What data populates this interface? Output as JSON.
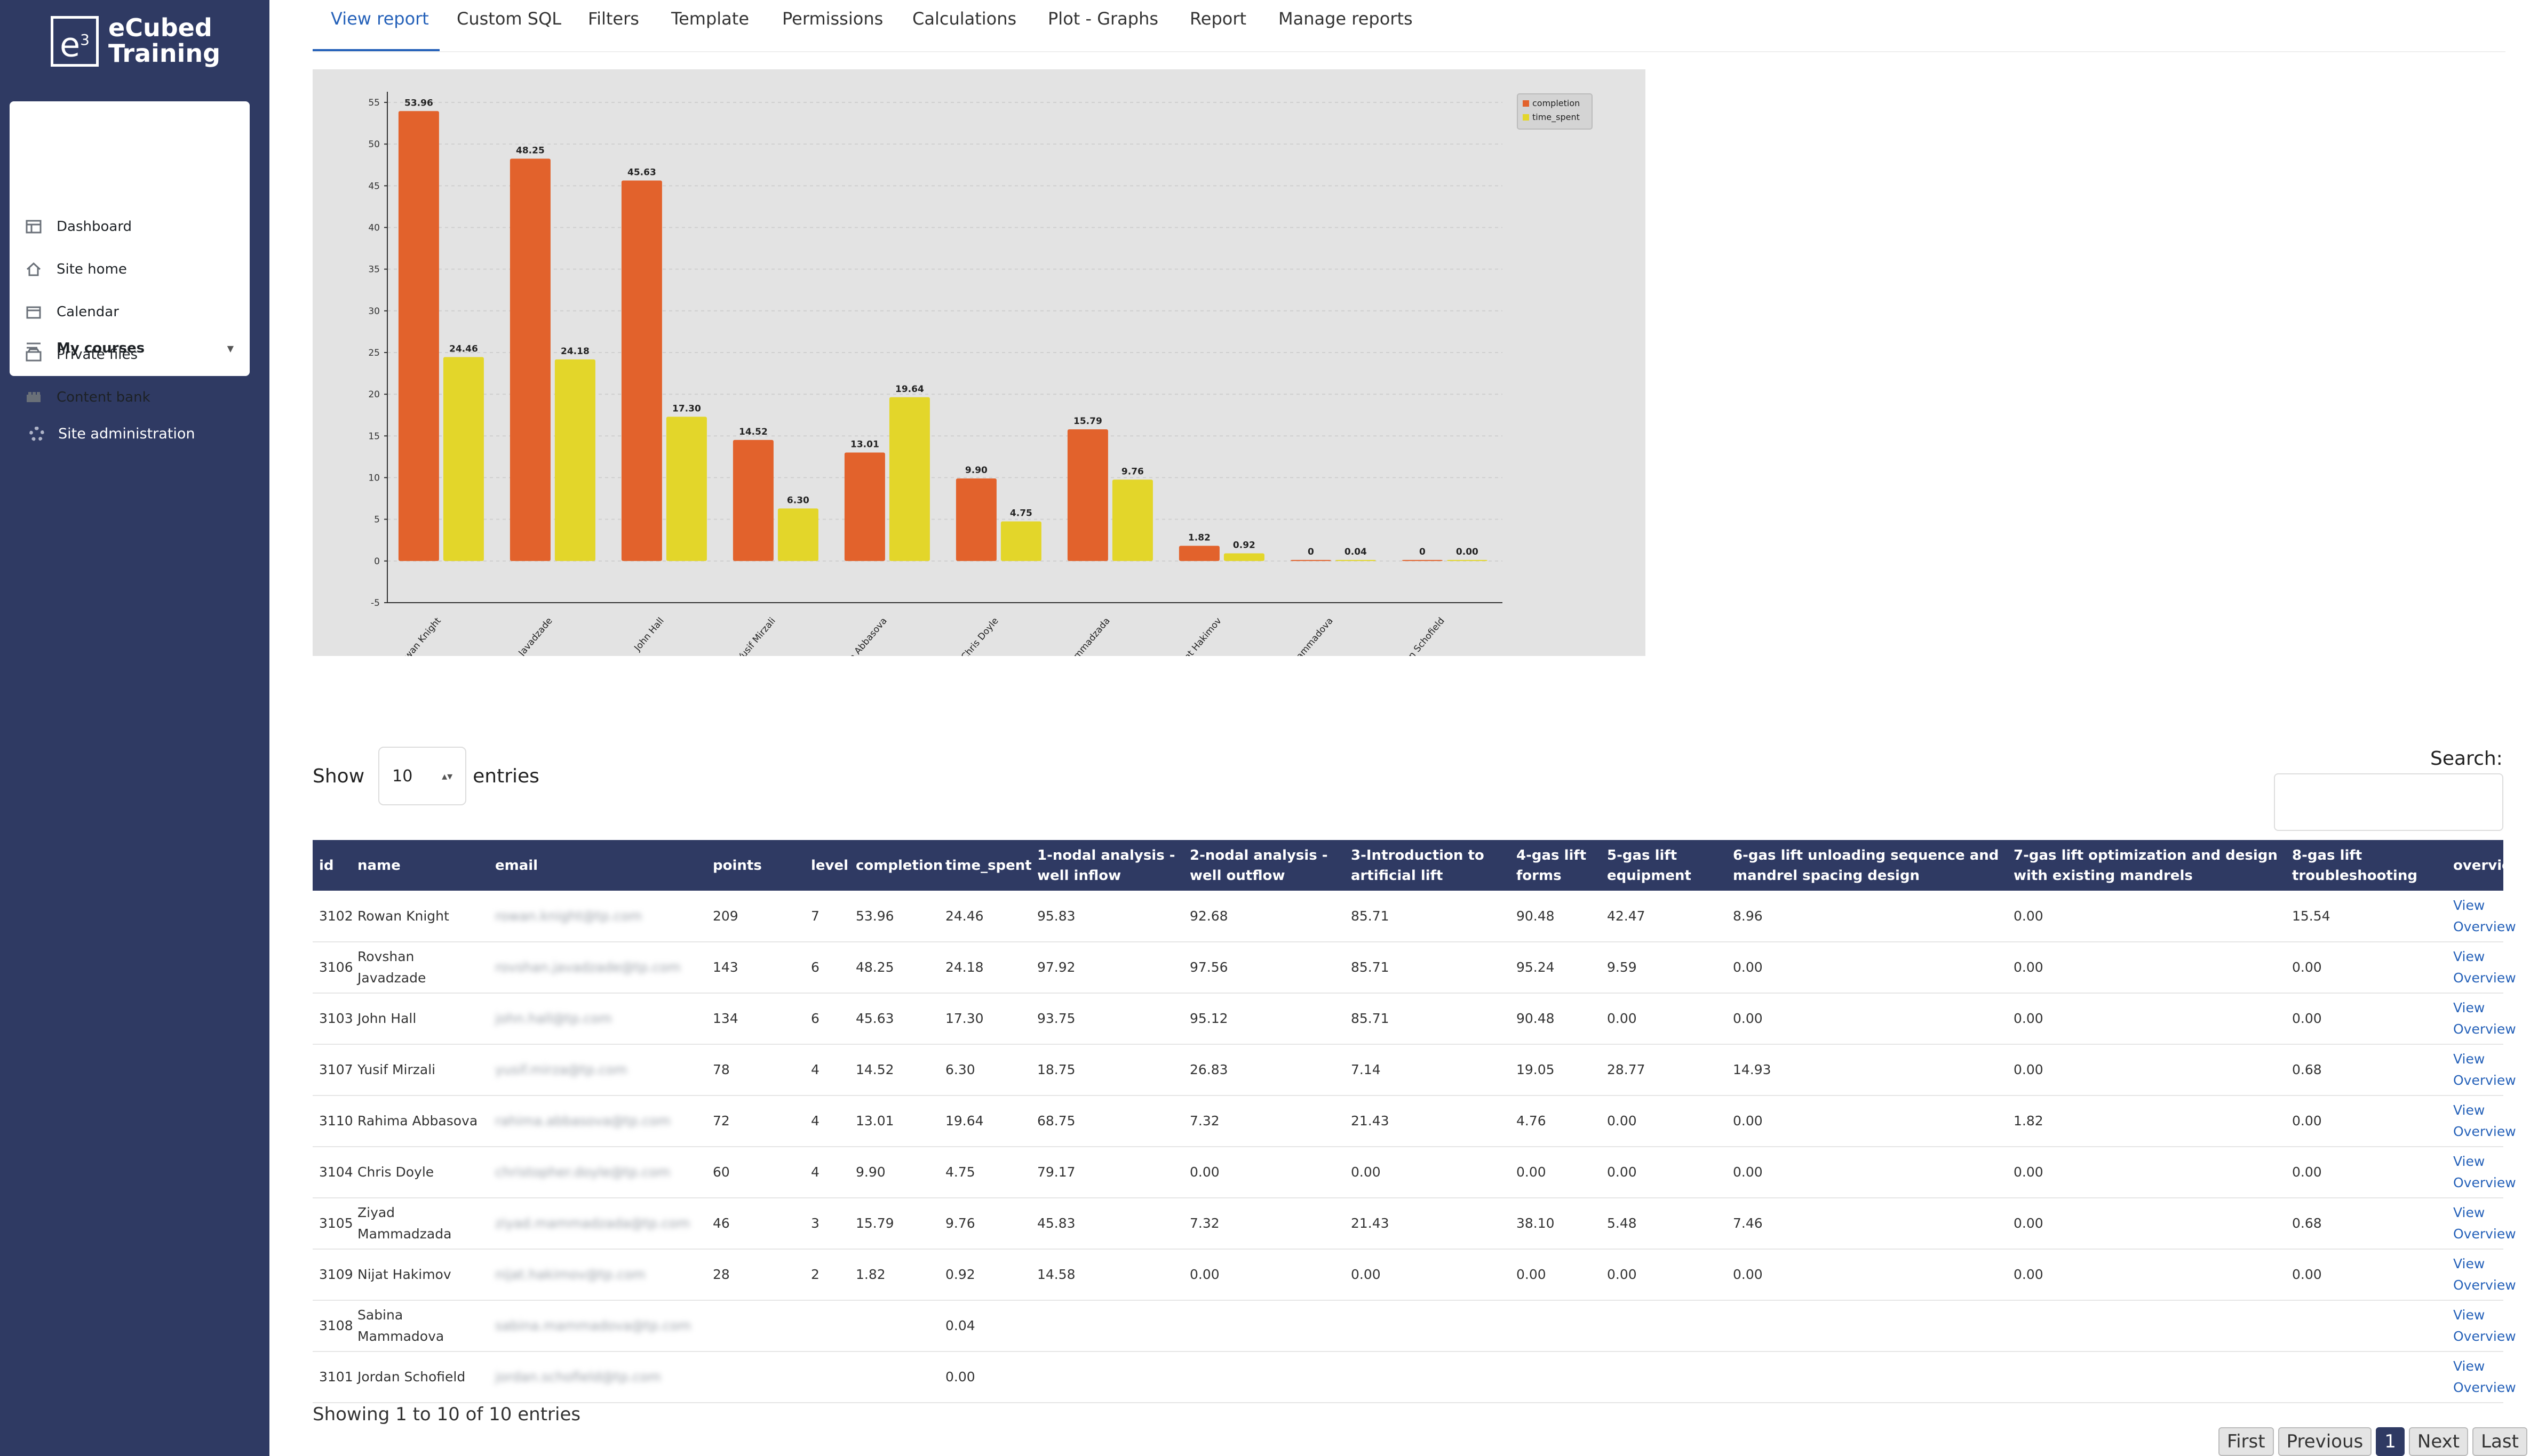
{
  "brand": {
    "mark": "e",
    "mark_sup": "3",
    "line1": "eCubed",
    "line2": "Training"
  },
  "nav": {
    "items": [
      {
        "label": "Dashboard",
        "icon": "dashboard-icon"
      },
      {
        "label": "Site home",
        "icon": "home-icon"
      },
      {
        "label": "Calendar",
        "icon": "calendar-icon"
      },
      {
        "label": "Private files",
        "icon": "folder-icon"
      },
      {
        "label": "Content bank",
        "icon": "content-bank-icon"
      }
    ],
    "my_courses": "My courses",
    "site_admin": "Site administration"
  },
  "tabs": [
    "View report",
    "Custom SQL",
    "Filters",
    "Template",
    "Permissions",
    "Calculations",
    "Plot - Graphs",
    "Report",
    "Manage reports"
  ],
  "active_tab": 0,
  "chart_data": {
    "type": "bar",
    "categories": [
      "Rowan Knight",
      "Rovshan Javadzade",
      "John Hall",
      "Yusif Mirzali",
      "Rahima Abbasova",
      "Chris Doyle",
      "Ziyad Mammadzada",
      "Nijat Hakimov",
      "Sabina Mammadova",
      "Jordan Schofield"
    ],
    "category_labels": [
      "Rowan Knight",
      "...an Javadzade",
      "John Hall",
      "Yusif Mirzali",
      "...ma Abbasova",
      "Chris Doyle",
      "Mammadzada",
      "Nijat Hakimov",
      "Mammadova",
      "...dan Schofield"
    ],
    "series": [
      {
        "name": "completion",
        "color": "#e2622c",
        "values": [
          53.96,
          48.25,
          45.63,
          14.52,
          13.01,
          9.9,
          15.79,
          1.82,
          0,
          0
        ],
        "labels": [
          "53.96",
          "48.25",
          "45.63",
          "14.52",
          "13.01",
          "9.90",
          "15.79",
          "1.82",
          "0",
          "0"
        ]
      },
      {
        "name": "time_spent",
        "color": "#e3d62a",
        "values": [
          24.46,
          24.18,
          17.3,
          6.3,
          19.64,
          4.75,
          9.76,
          0.92,
          0.04,
          0.0
        ],
        "labels": [
          "24.46",
          "24.18",
          "17.30",
          "6.30",
          "19.64",
          "4.75",
          "9.76",
          "0.92",
          "0.04",
          "0.00"
        ]
      }
    ],
    "ylim": [
      -5,
      55
    ],
    "yticks": [
      -5,
      0,
      5,
      10,
      15,
      20,
      25,
      30,
      35,
      40,
      45,
      50,
      55
    ],
    "legend": "top-right",
    "grid": true
  },
  "table": {
    "show_label": "Show",
    "entries_label": "entries",
    "page_size": "10",
    "search_label": "Search:",
    "columns": [
      "id",
      "name",
      "email",
      "points",
      "level",
      "completion",
      "time_spent",
      "1-nodal analysis - well inflow",
      "2-nodal analysis - well outflow",
      "3-Introduction to artificial lift",
      "4-gas lift forms",
      "5-gas lift equipment",
      "6-gas lift unloading sequence and mandrel spacing design",
      "7-gas lift optimization and design with existing mandrels",
      "8-gas lift troubleshooting",
      "overview"
    ],
    "rows": [
      [
        "3102",
        "Rowan Knight",
        "rowan.knight@tp.com",
        "209",
        "7",
        "53.96",
        "24.46",
        "95.83",
        "92.68",
        "85.71",
        "90.48",
        "42.47",
        "8.96",
        "0.00",
        "15.54"
      ],
      [
        "3106",
        "Rovshan Javadzade",
        "rovshan.javadzade@tp.com",
        "143",
        "6",
        "48.25",
        "24.18",
        "97.92",
        "97.56",
        "85.71",
        "95.24",
        "9.59",
        "0.00",
        "0.00",
        "0.00"
      ],
      [
        "3103",
        "John Hall",
        "john.hall@tp.com",
        "134",
        "6",
        "45.63",
        "17.30",
        "93.75",
        "95.12",
        "85.71",
        "90.48",
        "0.00",
        "0.00",
        "0.00",
        "0.00"
      ],
      [
        "3107",
        "Yusif Mirzali",
        "yusif.mirza@tp.com",
        "78",
        "4",
        "14.52",
        "6.30",
        "18.75",
        "26.83",
        "7.14",
        "19.05",
        "28.77",
        "14.93",
        "0.00",
        "0.68"
      ],
      [
        "3110",
        "Rahima Abbasova",
        "rahima.abbasova@tp.com",
        "72",
        "4",
        "13.01",
        "19.64",
        "68.75",
        "7.32",
        "21.43",
        "4.76",
        "0.00",
        "0.00",
        "1.82",
        "0.00"
      ],
      [
        "3104",
        "Chris Doyle",
        "christopher.doyle@tp.com",
        "60",
        "4",
        "9.90",
        "4.75",
        "79.17",
        "0.00",
        "0.00",
        "0.00",
        "0.00",
        "0.00",
        "0.00",
        "0.00"
      ],
      [
        "3105",
        "Ziyad Mammadzada",
        "ziyad.mammadzada@tp.com",
        "46",
        "3",
        "15.79",
        "9.76",
        "45.83",
        "7.32",
        "21.43",
        "38.10",
        "5.48",
        "7.46",
        "0.00",
        "0.68"
      ],
      [
        "3109",
        "Nijat Hakimov",
        "nijat.hakimov@tp.com",
        "28",
        "2",
        "1.82",
        "0.92",
        "14.58",
        "0.00",
        "0.00",
        "0.00",
        "0.00",
        "0.00",
        "0.00",
        "0.00"
      ],
      [
        "3108",
        "Sabina Mammadova",
        "sabina.mammadova@tp.com",
        "",
        "",
        "",
        "0.04",
        "",
        "",
        "",
        "",
        "",
        "",
        "",
        ""
      ],
      [
        "3101",
        "Jordan Schofield",
        "jordan.schofield@tp.com",
        "",
        "",
        "",
        "0.00",
        "",
        "",
        "",
        "",
        "",
        "",
        "",
        ""
      ]
    ],
    "overview_link": [
      "View",
      "Overview"
    ],
    "info": "Showing 1 to 10 of 10 entries",
    "pager": {
      "first": "First",
      "previous": "Previous",
      "current": "1",
      "next": "Next",
      "last": "Last"
    }
  }
}
